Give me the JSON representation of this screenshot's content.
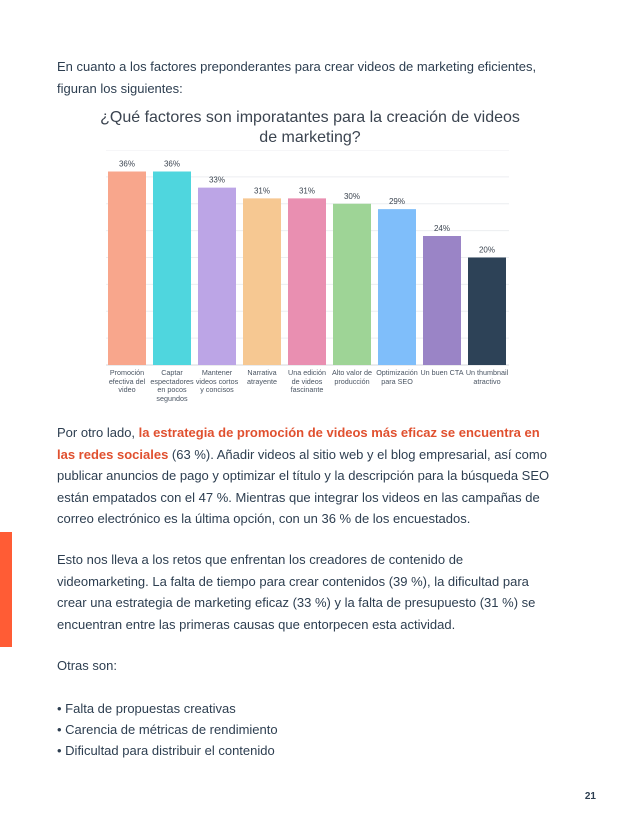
{
  "intro": "En cuanto a los factores preponderantes para crear videos de marketing eficientes, figuran los siguientes:",
  "chart_data": {
    "type": "bar",
    "title": "¿Qué factores son imporatantes para la creación de videos de marketing?",
    "categories": [
      "Promoción efectiva del video",
      "Captar espectadores en pocos segundos",
      "Mantener videos cortos y concisos",
      "Narrativa atrayente",
      "Una edición de videos fascinante",
      "Alto valor de producción",
      "Optimización para SEO",
      "Un buen CTA",
      "Un thumbnail atractivo"
    ],
    "values": [
      36,
      36,
      33,
      31,
      31,
      30,
      29,
      24,
      20
    ],
    "value_labels": [
      "36%",
      "36%",
      "33%",
      "31%",
      "31%",
      "30%",
      "29%",
      "24%",
      "20%"
    ],
    "colors": [
      "#f8a68c",
      "#4fd6de",
      "#bca5e6",
      "#f6c892",
      "#e98fb1",
      "#9ed496",
      "#7fbefa",
      "#9a84c6",
      "#2d4257"
    ],
    "ylim": [
      0,
      40
    ],
    "grid": true
  },
  "para2": {
    "pre": "Por otro lado, ",
    "highlight": "la estrategia de promoción de videos más eficaz se encuentra en las redes sociales",
    "post": " (63 %). Añadir videos al sitio web y el blog empresarial, así como publicar anuncios de pago y optimizar el título y la descripción para la búsqueda SEO están empatados con el 47 %. Mientras que integrar los videos en las campañas de correo electrónico es la última opción, con un 36 % de los encuestados."
  },
  "para3": "Esto nos lleva a los retos que enfrentan los creadores de contenido de videomarketing. La falta de tiempo para crear contenidos (39 %), la dificultad para crear una estrategia de marketing eficaz (33 %) y la falta de presupuesto (31 %) se encuentran entre las primeras causas que entorpecen esta actividad.",
  "others_label": "Otras son:",
  "bullets": [
    "Falta de propuestas creativas",
    "Carencia de métricas de rendimiento",
    "Dificultad para distribuir el contenido"
  ],
  "page_number": "21",
  "accent_color": "#ff5c35"
}
